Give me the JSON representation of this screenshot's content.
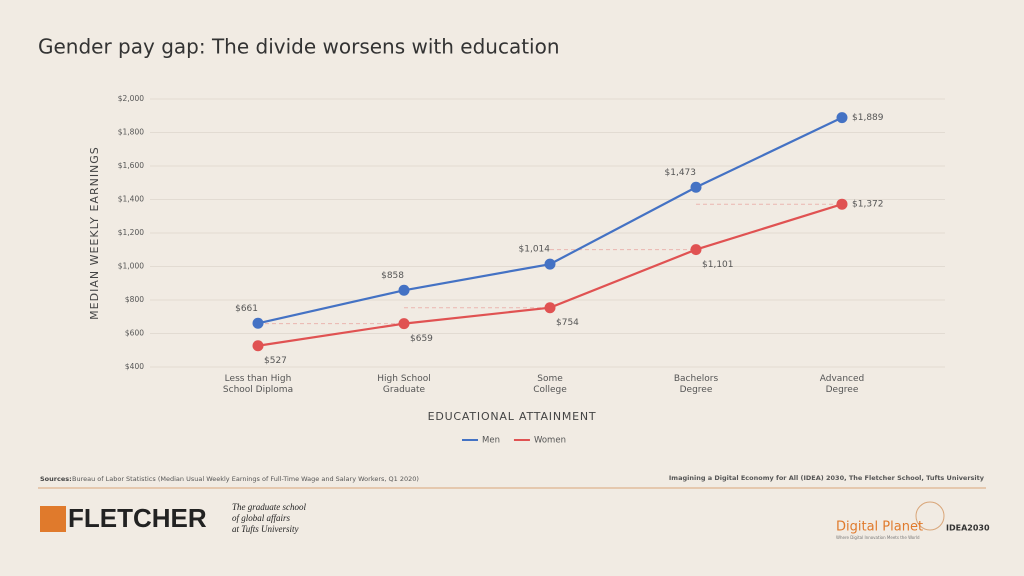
{
  "chart_data": {
    "type": "line",
    "title": "Gender pay gap: The divide worsens with education",
    "x_label": "EDUCATIONAL ATTAINMENT",
    "y_label": "MEDIAN WEEKLY EARNINGS",
    "categories": [
      "Less than High School Diploma",
      "High School Graduate",
      "Some College",
      "Bachelors Degree",
      "Advanced Degree"
    ],
    "series": [
      {
        "name": "Men",
        "color": "#4472c4",
        "values": [
          661,
          858,
          1014,
          1473,
          1889
        ],
        "value_labels": [
          "$661",
          "$858",
          "$1,014",
          "$1,473",
          "$1,889"
        ]
      },
      {
        "name": "Women",
        "color": "#e05252",
        "values": [
          527,
          659,
          754,
          1101,
          1372
        ],
        "value_labels": [
          "$527",
          "$659",
          "$754",
          "$1,101",
          "$1,372"
        ]
      }
    ],
    "ylim": [
      400,
      2000
    ],
    "yticks": [
      {
        "value": 400,
        "label": "$400"
      },
      {
        "value": 600,
        "label": "$600"
      },
      {
        "value": 800,
        "label": "$800"
      },
      {
        "value": 1000,
        "label": "$1,000"
      },
      {
        "value": 1200,
        "label": "$1,200"
      },
      {
        "value": 1400,
        "label": "$1,400"
      },
      {
        "value": 1600,
        "label": "$1,600"
      },
      {
        "value": 1800,
        "label": "$1,800"
      },
      {
        "value": 2000,
        "label": "$2,000"
      }
    ],
    "grid": true,
    "legend": "bottom"
  },
  "footer": {
    "sources_label": "Sources:",
    "sources": "Bureau of Labor Statistics (Median Usual Weekly Earnings of Full-Time Wage and Salary Workers, Q1 2020)",
    "credit": "Imagining a Digital Economy for All (IDEA) 2030, The Fletcher School, Tufts University",
    "logo_left": "FLETCHER",
    "tagline": [
      "The graduate school",
      "of global affairs",
      "at Tufts University"
    ],
    "logo_right": "Digital Planet",
    "logo_right_sub": "Where Digital Innovation Meets the World",
    "logo_idea": "IDEA2030"
  }
}
